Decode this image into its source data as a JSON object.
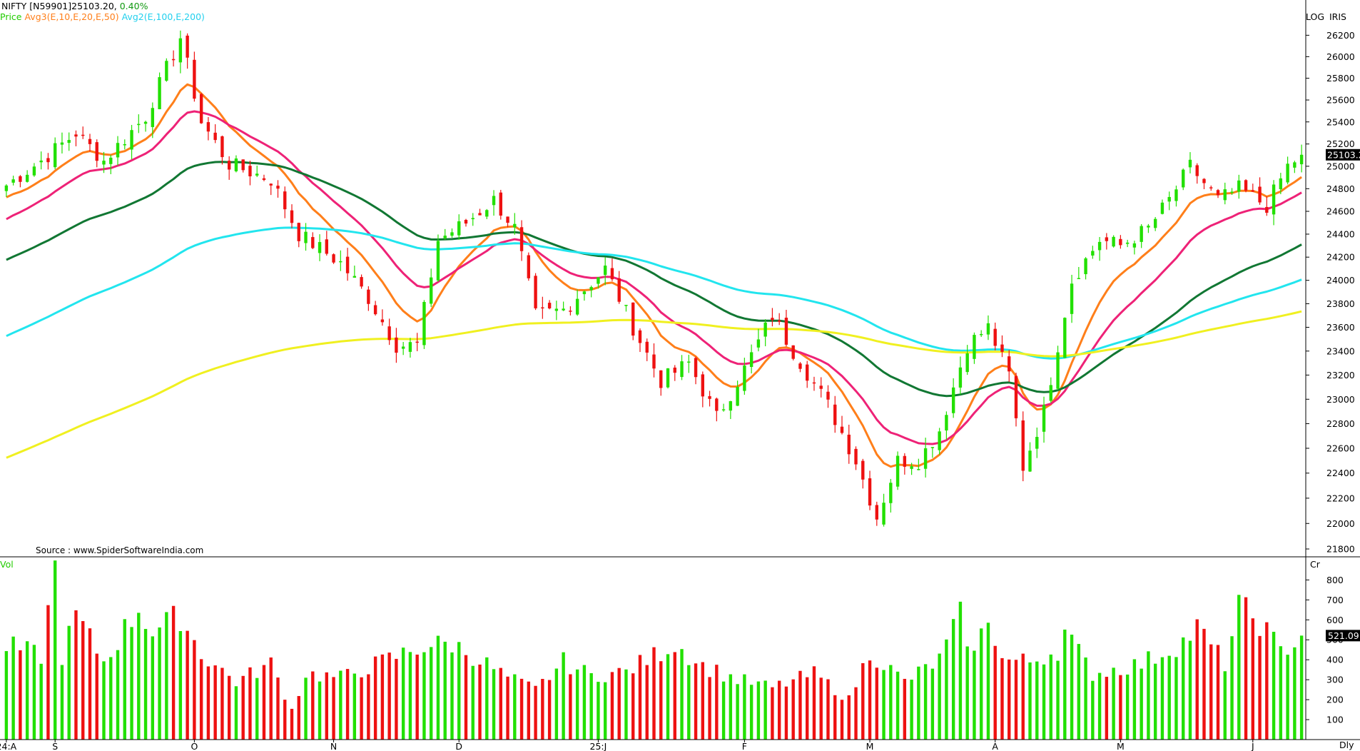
{
  "header": {
    "symbol": "NIFTY [N59901]",
    "last_price": "25103.20,",
    "change_pct": "0.40%",
    "legend_price": "Price",
    "legend_avg3": "Avg3(E,10,E,20,E,50)",
    "legend_avg2": "Avg2(E,100,E,200)",
    "scale_mode": "LOG",
    "vendor": "IRIS",
    "volume_label": "Vol",
    "volume_unit": "Cr",
    "periodicity": "Dly",
    "source": "Source : www.SpiderSoftwareIndia.com"
  },
  "chart_data": [
    {
      "type": "candlestick",
      "name": "price-panel",
      "y_scale": "log",
      "y_ticks": [
        21800,
        22000,
        22200,
        22400,
        22600,
        22800,
        23000,
        23200,
        23400,
        23600,
        23800,
        24000,
        24200,
        24400,
        24600,
        24800,
        25000,
        25200,
        25400,
        25600,
        25800,
        26000,
        26200
      ],
      "y_range": [
        21750,
        26330
      ],
      "last_value_badge": "25103.2",
      "x_tick_labels": [
        {
          "label": "24:A",
          "index": 0
        },
        {
          "label": "S",
          "index": 7
        },
        {
          "label": "O",
          "index": 27
        },
        {
          "label": "N",
          "index": 47
        },
        {
          "label": "D",
          "index": 65
        },
        {
          "label": "25:J",
          "index": 85
        },
        {
          "label": "F",
          "index": 106
        },
        {
          "label": "M",
          "index": 124
        },
        {
          "label": "A",
          "index": 142
        },
        {
          "label": "M",
          "index": 160
        },
        {
          "label": "J",
          "index": 179
        }
      ],
      "price_anchors": [
        [
          0,
          24830
        ],
        [
          5,
          25050
        ],
        [
          10,
          25300
        ],
        [
          14,
          25050
        ],
        [
          20,
          25450
        ],
        [
          25,
          26180
        ],
        [
          28,
          25400
        ],
        [
          32,
          25020
        ],
        [
          38,
          24880
        ],
        [
          42,
          24400
        ],
        [
          48,
          24150
        ],
        [
          52,
          23850
        ],
        [
          56,
          23450
        ],
        [
          59,
          23450
        ],
        [
          62,
          24350
        ],
        [
          66,
          24500
        ],
        [
          70,
          24700
        ],
        [
          73,
          24450
        ],
        [
          76,
          23700
        ],
        [
          80,
          23750
        ],
        [
          86,
          24100
        ],
        [
          90,
          23600
        ],
        [
          94,
          23150
        ],
        [
          98,
          23300
        ],
        [
          102,
          22850
        ],
        [
          106,
          23250
        ],
        [
          110,
          23700
        ],
        [
          113,
          23400
        ],
        [
          118,
          22950
        ],
        [
          122,
          22500
        ],
        [
          125,
          22050
        ],
        [
          128,
          22500
        ],
        [
          131,
          22500
        ],
        [
          134,
          22750
        ],
        [
          138,
          23450
        ],
        [
          141,
          23600
        ],
        [
          144,
          23200
        ],
        [
          146,
          22450
        ],
        [
          149,
          22900
        ],
        [
          153,
          24000
        ],
        [
          157,
          24350
        ],
        [
          160,
          24300
        ],
        [
          164,
          24450
        ],
        [
          167,
          24700
        ],
        [
          170,
          25000
        ],
        [
          174,
          24700
        ],
        [
          177,
          24800
        ],
        [
          181,
          24650
        ],
        [
          184,
          25000
        ],
        [
          186,
          25103
        ]
      ],
      "series": [
        {
          "name": "Price",
          "color_up": "#22e000",
          "color_down": "#ee1111"
        },
        {
          "name": "Avg3 E10",
          "color": "#ff7f1a"
        },
        {
          "name": "Avg3 E20",
          "color": "#ee2277"
        },
        {
          "name": "Avg3 E50",
          "color": "#117733"
        },
        {
          "name": "Avg2 E100",
          "color": "#22e5ee"
        },
        {
          "name": "Avg2 E200",
          "color": "#f0f020"
        }
      ],
      "ema_periods": [
        10,
        20,
        50,
        100,
        200
      ]
    },
    {
      "type": "bar",
      "name": "volume-panel",
      "y_ticks": [
        100,
        200,
        300,
        400,
        500,
        600,
        700,
        800
      ],
      "y_range": [
        0,
        880
      ],
      "last_value_badge": "521.09",
      "volume_anchors": [
        [
          0,
          470
        ],
        [
          5,
          420
        ],
        [
          7,
          860
        ],
        [
          8,
          420
        ],
        [
          10,
          620
        ],
        [
          14,
          390
        ],
        [
          19,
          660
        ],
        [
          21,
          540
        ],
        [
          25,
          620
        ],
        [
          28,
          430
        ],
        [
          33,
          290
        ],
        [
          38,
          380
        ],
        [
          41,
          150
        ],
        [
          43,
          330
        ],
        [
          48,
          310
        ],
        [
          54,
          390
        ],
        [
          60,
          470
        ],
        [
          64,
          480
        ],
        [
          68,
          400
        ],
        [
          72,
          310
        ],
        [
          76,
          250
        ],
        [
          80,
          390
        ],
        [
          84,
          320
        ],
        [
          89,
          340
        ],
        [
          96,
          480
        ],
        [
          100,
          370
        ],
        [
          105,
          300
        ],
        [
          110,
          260
        ],
        [
          116,
          330
        ],
        [
          121,
          200
        ],
        [
          124,
          440
        ],
        [
          129,
          290
        ],
        [
          134,
          400
        ],
        [
          137,
          620
        ],
        [
          139,
          420
        ],
        [
          141,
          630
        ],
        [
          143,
          400
        ],
        [
          147,
          390
        ],
        [
          151,
          450
        ],
        [
          152,
          540
        ],
        [
          156,
          330
        ],
        [
          163,
          380
        ],
        [
          169,
          490
        ],
        [
          171,
          560
        ],
        [
          175,
          380
        ],
        [
          177,
          660
        ],
        [
          180,
          590
        ],
        [
          183,
          440
        ],
        [
          186,
          521
        ]
      ],
      "color_up": "#22e000",
      "color_down": "#ee1111"
    }
  ],
  "colors": {
    "background": "#ffffff",
    "axis": "#000000",
    "header_price": "#000000",
    "header_change": "#119911",
    "legend_price": "#22cc00",
    "legend_avg3": "#ff7f1a",
    "legend_avg2": "#22d0ee"
  }
}
